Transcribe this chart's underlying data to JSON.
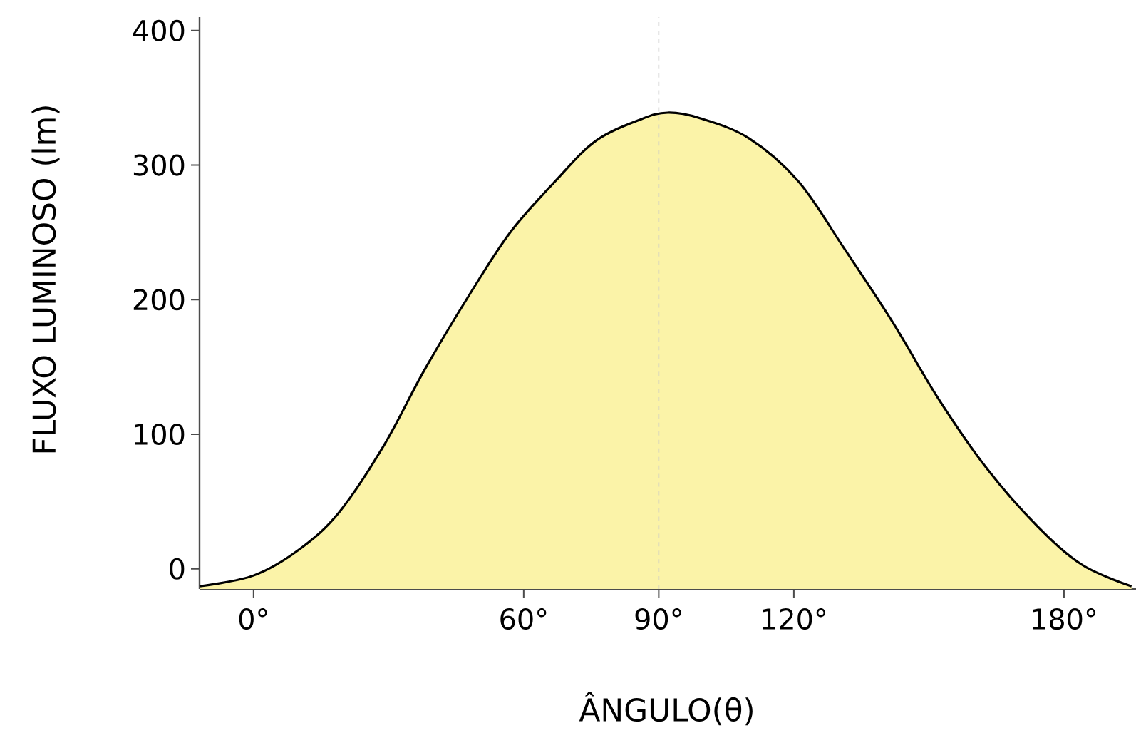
{
  "chart_data": {
    "type": "area",
    "xlabel": "ÂNGULO(θ)",
    "ylabel": "FLUXO LUMINOSO (lm)",
    "xlim": [
      -12,
      196
    ],
    "ylim": [
      -15,
      410
    ],
    "xticks": [
      {
        "value": 0,
        "label": "0°"
      },
      {
        "value": 60,
        "label": "60°"
      },
      {
        "value": 90,
        "label": "90°"
      },
      {
        "value": 120,
        "label": "120°"
      },
      {
        "value": 180,
        "label": "180°"
      }
    ],
    "yticks": [
      0,
      100,
      200,
      300,
      400
    ],
    "x": [
      -12,
      0,
      10,
      19,
      29,
      38,
      48,
      57,
      67,
      76,
      86,
      92,
      99,
      110,
      121,
      131,
      142,
      152,
      163,
      174,
      184,
      195
    ],
    "series": [
      {
        "color": "#fbf3a8",
        "values": [
          -13,
          -5,
          14,
          42,
          92,
          148,
          204,
          250,
          288,
          318,
          334,
          339,
          335,
          320,
          288,
          239,
          183,
          127,
          74,
          32,
          3,
          -13
        ]
      }
    ],
    "ref_lines": [
      {
        "axis": "x",
        "value": 90,
        "color": "#c8c8c8",
        "line_style": "dashed"
      }
    ],
    "grid": false
  }
}
